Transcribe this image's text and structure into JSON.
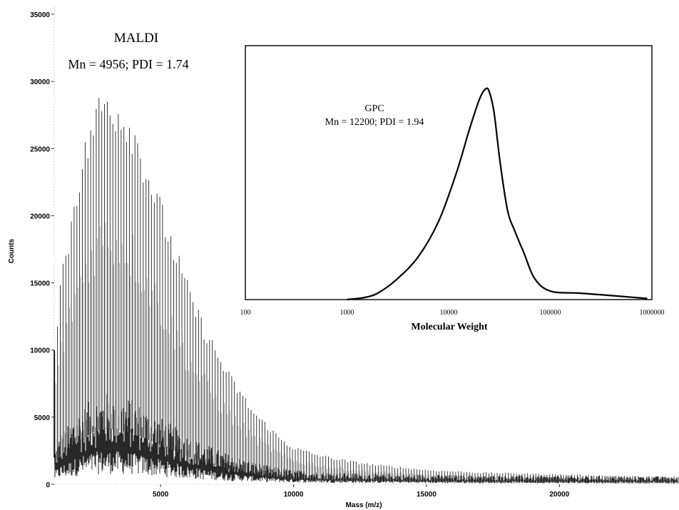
{
  "chart_data": [
    {
      "type": "line",
      "title": "MALDI",
      "subtitle": "Mn = 4956; PDI = 1.74",
      "xlabel": "Mass (m/z)",
      "ylabel": "Counts",
      "xlim": [
        1000,
        24500
      ],
      "ylim": [
        0,
        35000
      ],
      "xticks": [
        5000,
        10000,
        15000,
        20000
      ],
      "yticks": [
        0,
        5000,
        10000,
        15000,
        20000,
        25000,
        30000,
        35000
      ],
      "xtick_labels": [
        "5000",
        "10000",
        "15000",
        "20000"
      ],
      "ytick_labels": [
        "0",
        "5000",
        "10000",
        "15000",
        "20000",
        "25000",
        "30000",
        "35000"
      ],
      "grid": false,
      "legend": "none",
      "series": [
        {
          "x": [
            1000,
            1250,
            1500,
            1750,
            2000,
            2250,
            2500,
            2750,
            3000,
            3250,
            3500,
            3750,
            4000,
            4250,
            4500,
            4750,
            5000,
            5500,
            6000,
            6500,
            7000,
            7500,
            8000,
            8500,
            9000,
            9500,
            10000,
            11000,
            12000,
            13000,
            14000,
            15000,
            16000,
            17000,
            18000,
            19000,
            20000,
            21000,
            22000,
            23000,
            24000,
            24500
          ],
          "values": [
            10000,
            16000,
            18000,
            22000,
            24000,
            26000,
            28000,
            29000,
            29500,
            29000,
            28500,
            28000,
            27000,
            25500,
            24000,
            22500,
            21000,
            18000,
            15000,
            12500,
            10500,
            8500,
            7000,
            5500,
            4500,
            3500,
            2800,
            2200,
            1800,
            1500,
            1300,
            1100,
            1000,
            900,
            850,
            800,
            750,
            700,
            650,
            600,
            550,
            500
          ]
        }
      ]
    },
    {
      "type": "line",
      "title": "GPC",
      "subtitle": "Mn = 12200; PDI = 1.94",
      "xlabel": "Molecular Weight",
      "ylabel": "",
      "scale_x": "log",
      "xlim": [
        100,
        1000000
      ],
      "xticks": [
        100,
        1000,
        10000,
        100000,
        1000000
      ],
      "xtick_labels": [
        "100",
        "1000",
        "10000",
        "100000",
        "1000000"
      ],
      "ylim": [
        0,
        1
      ],
      "grid": false,
      "legend": "none",
      "series": [
        {
          "x": [
            1000,
            1500,
            2000,
            3000,
            5000,
            8000,
            12000,
            16000,
            20000,
            23000,
            25000,
            28000,
            32000,
            38000,
            45000,
            55000,
            70000,
            100000,
            200000,
            500000,
            900000
          ],
          "values": [
            0,
            0.01,
            0.03,
            0.09,
            0.2,
            0.37,
            0.6,
            0.8,
            0.94,
            0.99,
            0.98,
            0.88,
            0.65,
            0.42,
            0.32,
            0.22,
            0.1,
            0.04,
            0.03,
            0.015,
            0.005
          ]
        }
      ]
    }
  ]
}
